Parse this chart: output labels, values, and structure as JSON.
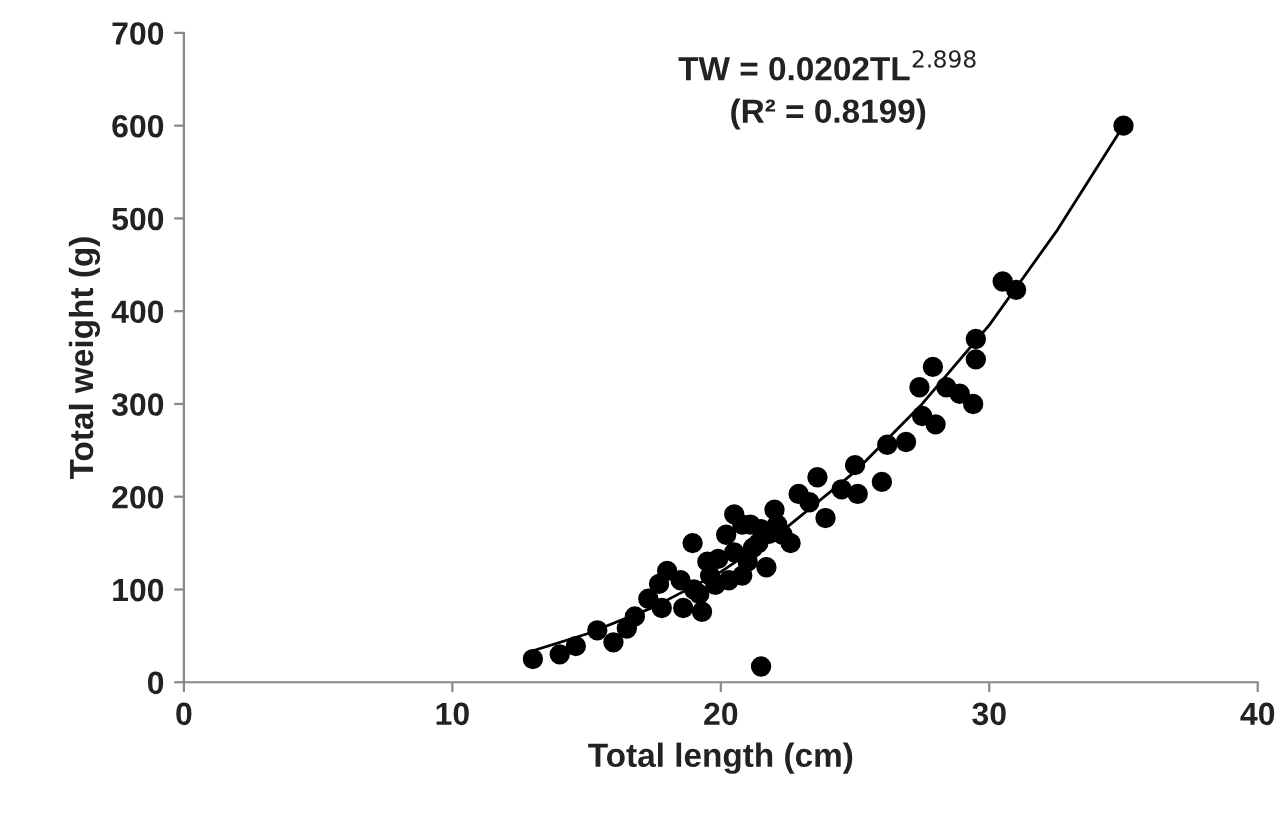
{
  "chart_data": {
    "type": "scatter",
    "xlabel": "Total length (cm)",
    "ylabel": "Total weight (g)",
    "xlim": [
      0,
      40
    ],
    "xticks": [
      0,
      10,
      20,
      30,
      40
    ],
    "ylim": [
      0,
      700
    ],
    "yticks": [
      0,
      100,
      200,
      300,
      400,
      500,
      600,
      700
    ],
    "grid": false,
    "marker": "circle",
    "annotations": [
      "TW = 0.0202TL$^{2.898}$",
      "(R² = 0.8199)"
    ],
    "series": [
      {
        "color": "#000000",
        "x": [
          13.0,
          14.0,
          14.6,
          15.4,
          16.0,
          16.5,
          16.8,
          17.3,
          17.7,
          18.0,
          18.6,
          18.95,
          19.3,
          19.6,
          19.9,
          20.2,
          20.5,
          20.8,
          21.1,
          21.4,
          21.7,
          22.0,
          22.3,
          22.6,
          22.9,
          23.3,
          23.6,
          23.9,
          24.5,
          25.0,
          25.1,
          26.0,
          26.2,
          26.9,
          27.4,
          27.5,
          27.9,
          28.0,
          28.4,
          28.9,
          29.4,
          29.5,
          29.5,
          30.5,
          31.0,
          35.0,
          21.5,
          18.5,
          19.0,
          19.5,
          20.5,
          21.0,
          21.5,
          19.8,
          20.3,
          21.2,
          22.1,
          17.8,
          19.2,
          20.8,
          21.8
        ],
        "values": [
          25,
          30,
          39,
          56,
          43,
          58,
          71,
          90,
          106,
          120,
          80,
          150,
          76,
          115,
          133,
          159,
          181,
          115,
          170,
          150,
          124,
          186,
          159,
          150,
          203,
          194,
          221,
          177,
          208,
          234,
          203,
          216,
          256,
          259,
          318,
          287,
          340,
          278,
          318,
          311,
          300,
          370,
          348,
          432,
          423,
          600,
          17,
          110,
          100,
          130,
          140,
          130,
          165,
          105,
          110,
          145,
          170,
          80,
          95,
          170,
          160
        ]
      },
      {
        "type": "line",
        "color": "#000000",
        "marker": "none",
        "line_style": "solid",
        "x": [
          13,
          15,
          17.5,
          20,
          22.5,
          25,
          27.5,
          30,
          32.5,
          35
        ],
        "values": [
          34,
          52,
          81,
          119,
          168,
          227,
          300,
          385,
          486,
          600
        ]
      }
    ]
  }
}
